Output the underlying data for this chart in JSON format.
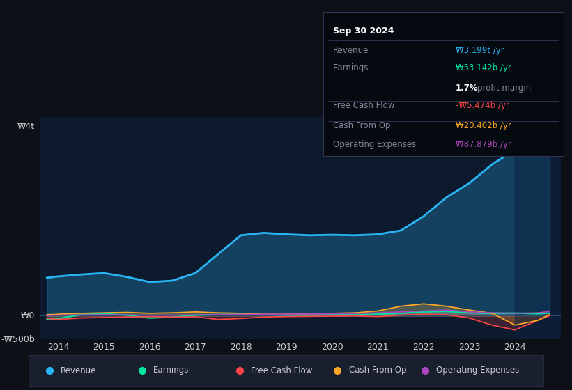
{
  "background_color": "#0d1117",
  "plot_bg_color": "#0d1a2e",
  "grid_color": "#1e3a5f",
  "text_color": "#c8ccd0",
  "ylabel_top": "₩4t",
  "ylabel_mid": "₩0",
  "ylabel_bot": "-₩500b",
  "revenue_color": "#29b6f6",
  "earnings_color": "#00e5a0",
  "fcf_color": "#ff4444",
  "cash_op_color": "#ffa726",
  "op_exp_color": "#ab47bc",
  "legend_bg": "#1a1f2e",
  "info": {
    "date": "Sep 30 2024",
    "revenue_val": "₩3.199t /yr",
    "earnings_val": "₩53.142b /yr",
    "profit_margin": "1.7% profit margin",
    "fcf_val": "-₩5.474b /yr",
    "cash_op_val": "₩20.402b /yr",
    "op_exp_val": "₩87.879b /yr"
  }
}
